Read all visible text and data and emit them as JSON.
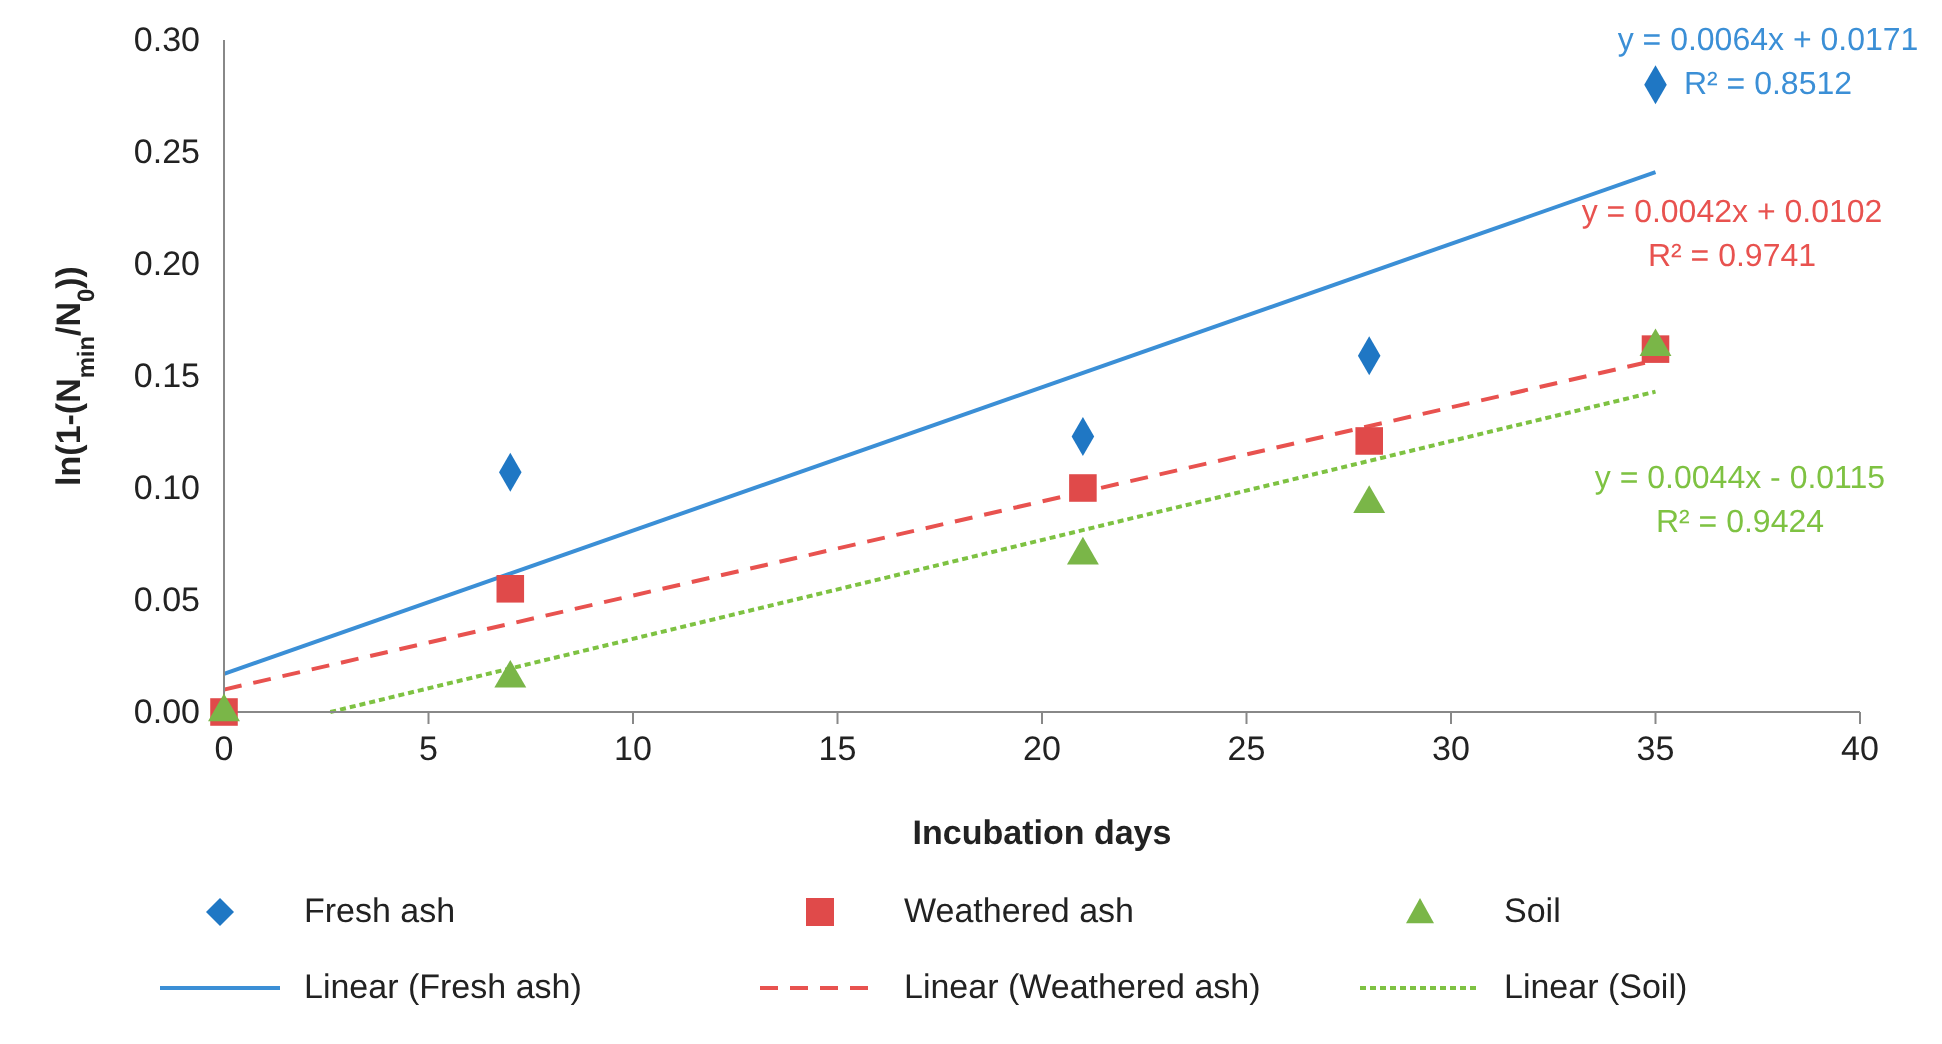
{
  "chart_data": {
    "type": "scatter",
    "xlabel": "Incubation days",
    "ylabel": "ln(1-(N$_{min}$/N$_{0}$))",
    "xlim": [
      0,
      40
    ],
    "xticks": [
      0,
      5,
      10,
      15,
      20,
      25,
      30,
      35,
      40
    ],
    "ylim": [
      0,
      0.3
    ],
    "yticks": [
      {
        "value": 0,
        "label": "0.00"
      },
      {
        "value": 0.05,
        "label": "0.05"
      },
      {
        "value": 0.1,
        "label": "0.10"
      },
      {
        "value": 0.15,
        "label": "0.15"
      },
      {
        "value": 0.2,
        "label": "0.20"
      },
      {
        "value": 0.25,
        "label": "0.25"
      },
      {
        "value": 0.3,
        "label": "0.30"
      }
    ],
    "grid": false,
    "legend": "bottom",
    "x": [
      0,
      7,
      21,
      28,
      35
    ],
    "series": [
      {
        "name": "Fresh ash",
        "marker": "diamond",
        "color": "#1f77c4",
        "values": [
          null,
          0.107,
          0.123,
          0.159,
          0.28
        ]
      },
      {
        "name": "Weathered ash",
        "marker": "square",
        "color": "#e04a4a",
        "values": [
          0,
          0.055,
          0.1,
          0.121,
          0.162
        ]
      },
      {
        "name": "Soil",
        "marker": "triangle",
        "color": "#7ab648",
        "values": [
          0,
          0.015,
          0.07,
          0.093,
          0.163
        ]
      },
      {
        "name": "Linear (Fresh ash)",
        "type": "line",
        "line_style": "solid",
        "marker": "none",
        "color": "#3b8fd6",
        "x": [
          0,
          35
        ],
        "values": [
          0.017,
          0.241
        ]
      },
      {
        "name": "Linear (Weathered ash)",
        "type": "line",
        "line_style": "dashed",
        "marker": "none",
        "color": "#e8524f",
        "x": [
          0,
          35
        ],
        "values": [
          0.01,
          0.157
        ]
      },
      {
        "name": "Linear (Soil)",
        "type": "line",
        "line_style": "dotted",
        "marker": "none",
        "color": "#7ec242",
        "x": [
          2.6,
          35
        ],
        "values": [
          0,
          0.143
        ]
      }
    ],
    "annotations": [
      "y = 0.0064x + 0.0171",
      "R² = 0.8512",
      "y = 0.0042x + 0.0102",
      "R² = 0.9741",
      "y = 0.0044x - 0.0115",
      "R² = 0.9424"
    ]
  }
}
